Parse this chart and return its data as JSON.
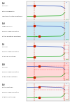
{
  "fig_width": 1.0,
  "fig_height": 1.46,
  "dpi": 100,
  "background": "#ffffff",
  "panels": [
    {
      "label": "(a)",
      "text": [
        "Full cell,",
        "with no parasitic",
        "reaction at either electrode"
      ],
      "bg": null,
      "blue_shift": 0.0,
      "green_shift": 0.0,
      "show_green_arrow": false,
      "show_red_dashed_box": false,
      "show_red_hlines": false
    },
    {
      "label": "(b)",
      "text": [
        "Negative only",
        "self-discharge reaction",
        "at the negative electrode"
      ],
      "bg": "#cce8f4",
      "blue_shift": 0.0,
      "green_shift": 0.12,
      "show_green_arrow": true,
      "show_red_dashed_box": false,
      "show_red_hlines": false
    },
    {
      "label": "(c)",
      "text": [
        "Full cell",
        "self-discharge reaction",
        "at either electrode"
      ],
      "bg": null,
      "blue_shift": 0.0,
      "green_shift": 0.0,
      "show_green_arrow": false,
      "show_red_dashed_box": true,
      "show_red_hlines": false
    },
    {
      "label": "(d)",
      "text": [
        "Full cell",
        "self-discharge reaction",
        "at positive electrode"
      ],
      "bg": "#ffd8d8",
      "blue_shift": 0.12,
      "green_shift": 0.0,
      "show_green_arrow": false,
      "show_red_dashed_box": true,
      "show_red_hlines": true
    },
    {
      "label": "(e)",
      "text": [
        "Both reactions",
        "self-discharge reaction",
        "at both electrodes"
      ],
      "bg": null,
      "blue_shift": 0.12,
      "green_shift": 0.12,
      "show_green_arrow": true,
      "show_red_dashed_box": true,
      "show_red_hlines": true
    }
  ],
  "blue_color": "#3355bb",
  "green_color": "#22aa22",
  "red_color": "#cc2200",
  "red_dashed_color": "#ff6666",
  "text_color": "#222222"
}
